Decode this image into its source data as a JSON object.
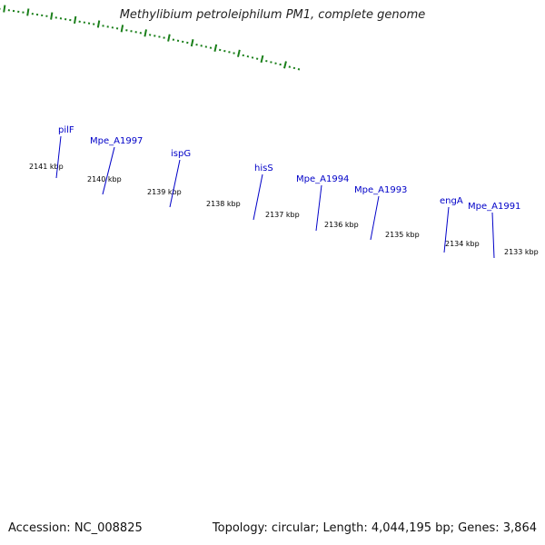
{
  "title": "Methylibium petroleiphilum PM1, complete genome",
  "footer": {
    "accession": "Accession: NC_008825",
    "summary": "Topology: circular; Length: 4,044,195 bp; Genes: 3,864"
  },
  "colors": {
    "gene_label": "#0000c8",
    "tick": "#1a7f1a",
    "cds": "#0000ee",
    "backbone": "#7a7a7a",
    "feature_gray": "#c8c8c8",
    "feature_dark": "#6a6a6a",
    "feature_green": "#2ea12e",
    "feature_lightgreen": "#a6f04a",
    "feature_purple": "#7a6ad6",
    "feature_pink": "#ef7f7f"
  },
  "ticks": [
    {
      "label": "2141 kbp"
    },
    {
      "label": "2140 kbp"
    },
    {
      "label": "2139 kbp"
    },
    {
      "label": "2138 kbp"
    },
    {
      "label": "2137 kbp"
    },
    {
      "label": "2136 kbp"
    },
    {
      "label": "2135 kbp"
    },
    {
      "label": "2134 kbp"
    },
    {
      "label": "2133 kbp"
    }
  ],
  "genes": [
    {
      "name": "pilF"
    },
    {
      "name": "Mpe_A1997"
    },
    {
      "name": "ispG"
    },
    {
      "name": "hisS"
    },
    {
      "name": "Mpe_A1994"
    },
    {
      "name": "Mpe_A1993"
    },
    {
      "name": "engA"
    },
    {
      "name": "Mpe_A1991"
    }
  ]
}
